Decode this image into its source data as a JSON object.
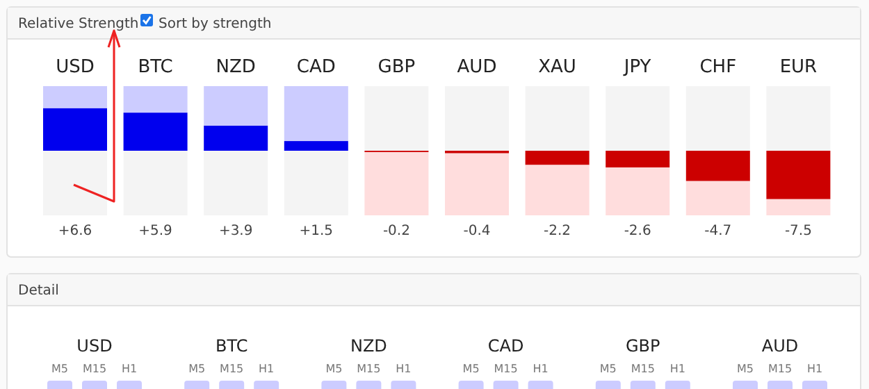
{
  "chart_data": [
    {
      "type": "bar",
      "title": "Relative Strength",
      "annotations": [
        "Sort by strength"
      ],
      "categories": [
        "USD",
        "BTC",
        "NZD",
        "CAD",
        "GBP",
        "AUD",
        "XAU",
        "JPY",
        "CHF",
        "EUR"
      ],
      "series": [
        {
          "values": [
            6.6,
            5.9,
            3.9,
            1.5,
            -0.2,
            -0.4,
            -2.2,
            -2.6,
            -4.7,
            -7.5
          ],
          "colors": [
            "#0000ee",
            "#0000ee",
            "#0000ee",
            "#0000ee",
            "#cc0000",
            "#cc0000",
            "#cc0000",
            "#cc0000",
            "#cc0000",
            "#cc0000"
          ],
          "value_labels": [
            "+6.6",
            "+5.9",
            "+3.9",
            "+1.5",
            "-0.2",
            "-0.4",
            "-2.2",
            "-2.6",
            "-4.7",
            "-7.5"
          ]
        },
        {
          "values": [
            3.4,
            4.1,
            6.1,
            8.5,
            -9.8,
            -9.6,
            -7.8,
            -7.4,
            -5.3,
            -2.5
          ],
          "colors": [
            "#ccccff",
            "#ccccff",
            "#ccccff",
            "#ccccff",
            "#ffdddd",
            "#ffdddd",
            "#ffdddd",
            "#ffdddd",
            "#ffdddd",
            "#ffdddd"
          ]
        },
        {
          "values": [
            -10,
            -10,
            -10,
            -10,
            10,
            10,
            10,
            10,
            10,
            10
          ],
          "colors": [
            "#f4f4f4",
            "#f4f4f4",
            "#f4f4f4",
            "#f4f4f4",
            "#f4f4f4",
            "#f4f4f4",
            "#f4f4f4",
            "#f4f4f4",
            "#f4f4f4",
            "#f4f4f4"
          ]
        }
      ],
      "stacked": true,
      "ylim": [
        -10,
        10
      ]
    },
    {
      "type": "other",
      "title": "Detail",
      "categories": [
        "USD",
        "BTC",
        "NZD",
        "CAD",
        "GBP",
        "AUD"
      ],
      "annotations": [
        "M5",
        "M15",
        "H1"
      ]
    }
  ]
}
